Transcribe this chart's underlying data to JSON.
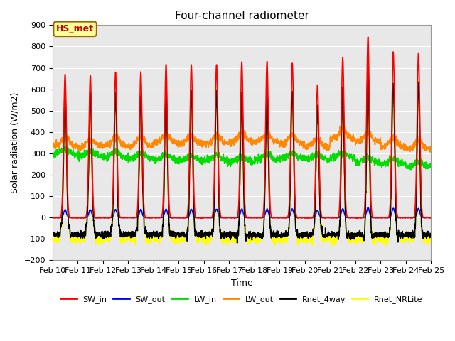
{
  "title": "Four-channel radiometer",
  "xlabel": "Time",
  "ylabel": "Solar radiation (W/m2)",
  "ylim": [
    -200,
    900
  ],
  "yticks": [
    -200,
    -100,
    0,
    100,
    200,
    300,
    400,
    500,
    600,
    700,
    800,
    900
  ],
  "xlim": [
    10,
    25
  ],
  "annotation_text": "HS_met",
  "annotation_color": "#cc0000",
  "annotation_bg": "#ffff99",
  "annotation_border": "#996600",
  "series": {
    "SW_in": {
      "color": "#ff0000",
      "lw": 1.2
    },
    "SW_out": {
      "color": "#0000ff",
      "lw": 1.2
    },
    "LW_in": {
      "color": "#00dd00",
      "lw": 1.2
    },
    "LW_out": {
      "color": "#ff8800",
      "lw": 1.2
    },
    "Rnet_4way": {
      "color": "#000000",
      "lw": 1.2
    },
    "Rnet_NRLite": {
      "color": "#ffff00",
      "lw": 1.2
    }
  },
  "plot_bg": "#e8e8e8",
  "grid_color": "#ffffff",
  "peaks_SW_in": [
    670,
    665,
    680,
    682,
    716,
    715,
    715,
    728,
    730,
    725,
    620,
    750,
    845,
    775,
    770
  ],
  "peaks_LW_out": [
    355,
    350,
    355,
    355,
    370,
    365,
    365,
    375,
    375,
    365,
    350,
    390,
    375,
    350,
    340
  ],
  "peaks_LW_in": [
    310,
    300,
    295,
    290,
    285,
    280,
    280,
    275,
    285,
    290,
    285,
    295,
    270,
    265,
    250
  ],
  "night_rnet_4way": -80,
  "night_rnet_nrl": -100,
  "figsize": [
    6.4,
    4.8
  ],
  "dpi": 100
}
